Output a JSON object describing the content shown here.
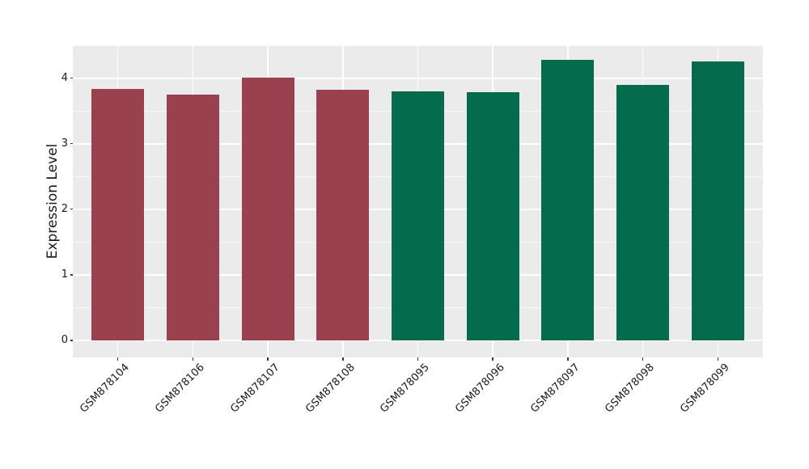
{
  "chart_data": {
    "type": "bar",
    "title": "",
    "xlabel": "",
    "ylabel": "Expression Level",
    "categories": [
      "GSM878104",
      "GSM878106",
      "GSM878107",
      "GSM878108",
      "GSM878095",
      "GSM878096",
      "GSM878097",
      "GSM878098",
      "GSM878099"
    ],
    "values": [
      3.84,
      3.75,
      4.01,
      3.82,
      3.8,
      3.78,
      4.28,
      3.9,
      4.25
    ],
    "bar_colors": [
      "#9A4150",
      "#9A4150",
      "#9A4150",
      "#9A4150",
      "#046C4C",
      "#046C4C",
      "#046C4C",
      "#046C4C",
      "#046C4C"
    ],
    "group_colors": {
      "maroon_group": "#9A4150",
      "green_group": "#046C4C"
    },
    "yticks": [
      0,
      1,
      2,
      3,
      4
    ],
    "minor_yticks": [
      0.5,
      1.5,
      2.5,
      3.5,
      4.5
    ],
    "ylim": [
      -0.26,
      4.5
    ],
    "grid": true,
    "legend": "none",
    "panel_bg": "#EBEBEB",
    "grid_color": "#FFFFFF",
    "text_color": "#1A1A1A"
  }
}
